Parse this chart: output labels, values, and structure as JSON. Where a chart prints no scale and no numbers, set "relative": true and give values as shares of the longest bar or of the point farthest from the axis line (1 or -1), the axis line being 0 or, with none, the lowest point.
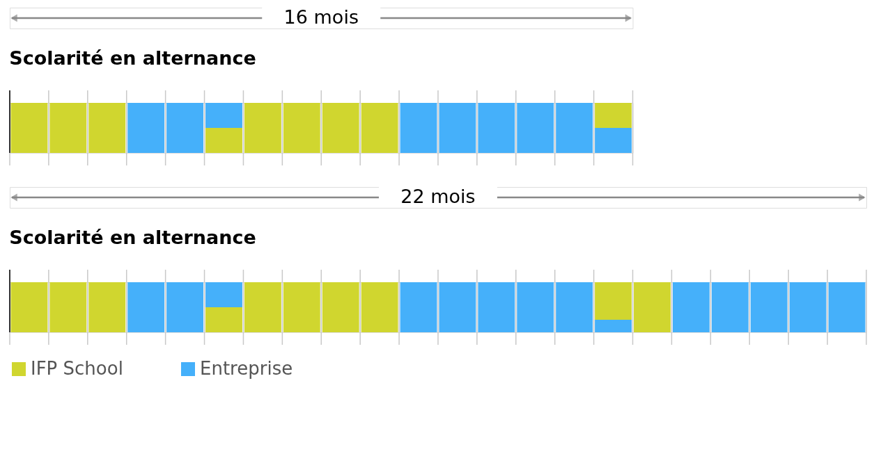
{
  "chart_data": [
    {
      "type": "bar",
      "title": "Scolarité en alternance",
      "annotations": [
        "16 mois"
      ],
      "relative": true,
      "stacked": true,
      "grid": "x",
      "tick_labels": false,
      "categories": [
        null,
        null,
        null,
        null,
        null,
        null,
        null,
        null,
        null,
        null,
        null,
        null,
        null,
        null,
        null,
        null
      ],
      "series": [
        {
          "color": "#d0d62f",
          "values": [
            1,
            1,
            1,
            0,
            0,
            0.5,
            1,
            1,
            1,
            1,
            0,
            0,
            0,
            0,
            0,
            0
          ]
        },
        {
          "color": "#45b0fa",
          "values": [
            0,
            0,
            0,
            1,
            1,
            0.5,
            0,
            0,
            0,
            0,
            1,
            1,
            1,
            1,
            1,
            0.5
          ]
        },
        {
          "color": "#d0d62f",
          "values": [
            0,
            0,
            0,
            0,
            0,
            0,
            0,
            0,
            0,
            0,
            0,
            0,
            0,
            0,
            0,
            0.5
          ]
        }
      ]
    },
    {
      "type": "bar",
      "title": "Scolarité en alternance",
      "annotations": [
        "22 mois"
      ],
      "relative": true,
      "stacked": true,
      "grid": "x",
      "tick_labels": false,
      "legend": "bottom left",
      "categories": [
        null,
        null,
        null,
        null,
        null,
        null,
        null,
        null,
        null,
        null,
        null,
        null,
        null,
        null,
        null,
        null,
        null,
        null,
        null,
        null,
        null,
        null
      ],
      "series": [
        {
          "name": "IFP School",
          "color": "#d0d62f",
          "values": [
            1,
            1,
            1,
            0,
            0,
            0.5,
            1,
            1,
            1,
            1,
            0,
            0,
            0,
            0,
            0,
            0,
            1,
            0,
            0,
            0,
            0,
            0
          ]
        },
        {
          "name": "Entreprise",
          "color": "#45b0fa",
          "values": [
            0,
            0,
            0,
            1,
            1,
            0.5,
            0,
            0,
            0,
            0,
            1,
            1,
            1,
            1,
            1,
            0.25,
            0,
            1,
            1,
            1,
            1,
            1
          ]
        },
        {
          "color": "#d0d62f",
          "values": [
            0,
            0,
            0,
            0,
            0,
            0,
            0,
            0,
            0,
            0,
            0,
            0,
            0,
            0,
            0,
            0.75,
            0,
            0,
            0,
            0,
            0,
            0
          ]
        }
      ]
    }
  ]
}
